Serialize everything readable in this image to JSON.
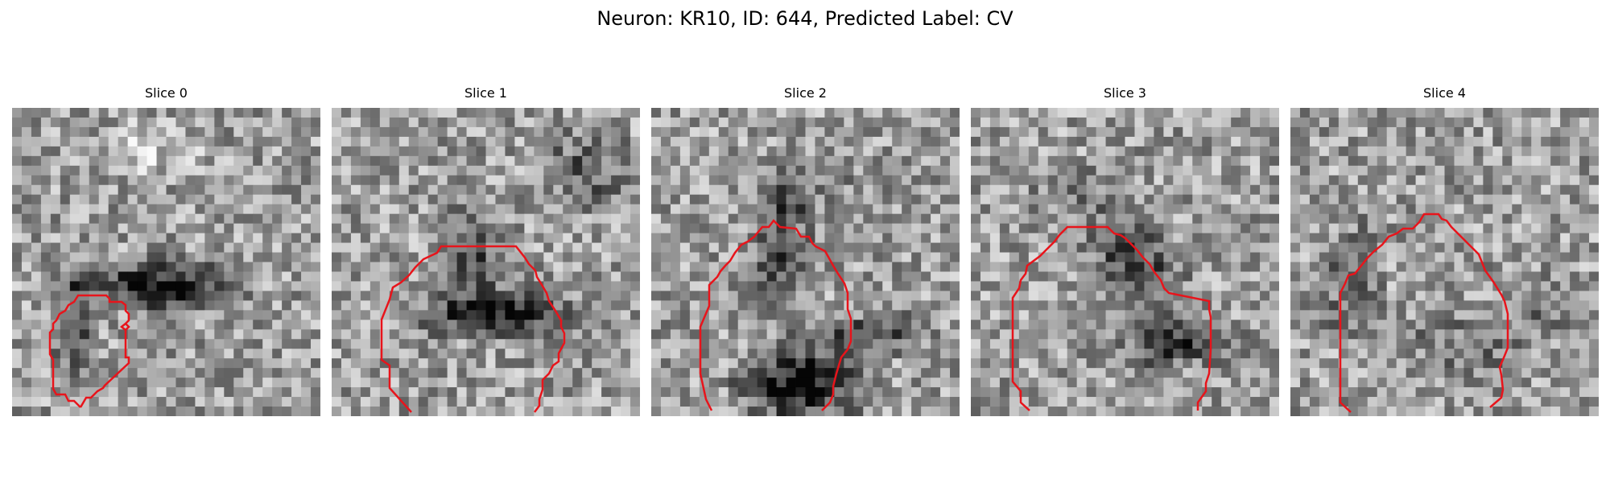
{
  "figure": {
    "title": "Neuron: KR10, ID: 644, Predicted Label: CV",
    "contour_color": "#e8141b",
    "panels": [
      {
        "title": "Slice 0",
        "seed": 11
      },
      {
        "title": "Slice 1",
        "seed": 23
      },
      {
        "title": "Slice 2",
        "seed": 37
      },
      {
        "title": "Slice 3",
        "seed": 51
      },
      {
        "title": "Slice 4",
        "seed": 67
      }
    ]
  }
}
